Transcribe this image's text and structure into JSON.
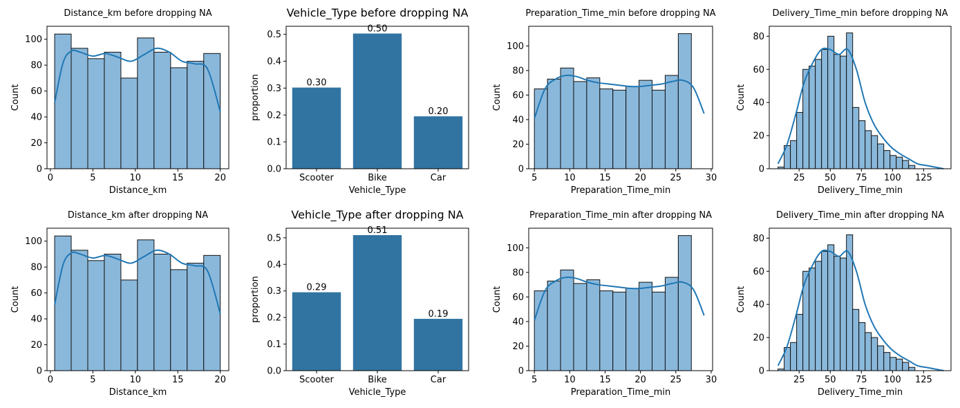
{
  "chart_data": [
    {
      "type": "histogram",
      "title": "Distance_km before dropping NA",
      "xlabel": "Distance_km",
      "ylabel": "Count",
      "xlim": [
        -0.4,
        21.0
      ],
      "ylim": [
        0,
        110
      ],
      "xticks": [
        0,
        5,
        10,
        15,
        20
      ],
      "yticks": [
        0,
        20,
        40,
        60,
        80,
        100
      ],
      "bin_edges": [
        0.5,
        2.45,
        4.4,
        6.35,
        8.3,
        10.25,
        12.2,
        14.15,
        16.1,
        18.05,
        20.0
      ],
      "counts": [
        104,
        93,
        85,
        90,
        70,
        101,
        90,
        78,
        83,
        89
      ],
      "kde": {
        "x": [
          0.5,
          1.5,
          2.5,
          3.5,
          5,
          6.5,
          8,
          9.5,
          11,
          12.5,
          14,
          15.5,
          17,
          18.5,
          20
        ],
        "y": [
          51,
          82,
          91,
          90,
          87,
          89,
          86,
          83,
          88,
          93,
          90,
          83,
          81,
          77,
          44
        ]
      },
      "color": "#8ab8db",
      "line_color": "#1f77b4"
    },
    {
      "type": "bar",
      "title": "Vehicle_Type before dropping NA",
      "xlabel": "Vehicle_Type",
      "ylabel": "proportion",
      "categories": [
        "Scooter",
        "Bike",
        "Car"
      ],
      "values": [
        0.302,
        0.503,
        0.195
      ],
      "data_labels": [
        "0.30",
        "0.50",
        "0.20"
      ],
      "ylim": [
        0,
        0.53
      ],
      "yticks": [
        "0.0",
        "0.1",
        "0.2",
        "0.3",
        "0.4",
        "0.5"
      ],
      "color": "#3274a1"
    },
    {
      "type": "histogram",
      "title": "Preparation_Time_min before dropping NA",
      "xlabel": "Preparation_Time_min",
      "ylabel": "Count",
      "xlim": [
        4.2,
        30.2
      ],
      "ylim": [
        0,
        116
      ],
      "xticks": [
        5,
        10,
        15,
        20,
        25,
        30
      ],
      "yticks": [
        0,
        20,
        40,
        60,
        80,
        100
      ],
      "bin_edges": [
        5,
        6.85,
        8.7,
        10.55,
        12.4,
        14.25,
        16.1,
        17.95,
        19.8,
        21.65,
        23.5,
        25.35,
        27.2,
        29.05
      ],
      "counts": [
        65,
        73,
        82,
        71,
        74,
        65,
        64,
        67,
        72,
        64,
        76,
        110,
        0
      ],
      "kde": {
        "x": [
          5,
          6.5,
          8,
          9.5,
          11,
          12.5,
          14,
          15.5,
          17,
          18.5,
          20,
          21.5,
          23,
          24.5,
          26,
          27.5,
          29
        ],
        "y": [
          41,
          65,
          73,
          76,
          75,
          72,
          70,
          69,
          68,
          67,
          67,
          68,
          69,
          71,
          72,
          66,
          45
        ]
      },
      "color": "#8ab8db",
      "line_color": "#1f77b4"
    },
    {
      "type": "histogram",
      "title": "Delivery_Time_min before dropping NA",
      "xlabel": "Delivery_Time_min",
      "ylabel": "Count",
      "xlim": [
        1,
        147
      ],
      "ylim": [
        0,
        86
      ],
      "xticks": [
        25,
        50,
        75,
        100,
        125
      ],
      "yticks": [
        0,
        20,
        40,
        60,
        80
      ],
      "bin_edges": [
        8,
        13,
        18,
        23,
        28,
        33,
        38,
        43,
        48,
        53,
        58,
        63,
        68,
        73,
        78,
        83,
        88,
        93,
        98,
        103,
        108,
        113,
        118,
        123,
        128,
        133,
        138,
        143
      ],
      "counts": [
        1,
        14,
        17,
        34,
        60,
        62,
        66,
        72,
        80,
        69,
        68,
        82,
        37,
        29,
        23,
        20,
        15,
        11,
        8,
        7,
        5,
        2,
        0,
        0,
        0,
        0,
        0
      ],
      "kde": {
        "x": [
          8,
          15,
          22,
          29,
          36,
          43,
          50,
          57,
          64,
          71,
          78,
          85,
          92,
          99,
          106,
          113,
          120,
          127,
          134,
          141
        ],
        "y": [
          3,
          14,
          32,
          52,
          64,
          72,
          72,
          69,
          72,
          60,
          40,
          27,
          19,
          13,
          9,
          6,
          3,
          2,
          1,
          0
        ]
      },
      "color": "#8ab8db",
      "line_color": "#1f77b4"
    },
    {
      "type": "histogram",
      "title": "Distance_km after dropping NA",
      "xlabel": "Distance_km",
      "ylabel": "Count",
      "xlim": [
        -0.4,
        21.0
      ],
      "ylim": [
        0,
        110
      ],
      "xticks": [
        0,
        5,
        10,
        15,
        20
      ],
      "yticks": [
        0,
        20,
        40,
        60,
        80,
        100
      ],
      "bin_edges": [
        0.5,
        2.45,
        4.4,
        6.35,
        8.3,
        10.25,
        12.2,
        14.15,
        16.1,
        18.05,
        20.0
      ],
      "counts": [
        104,
        93,
        85,
        90,
        70,
        101,
        90,
        78,
        83,
        89
      ],
      "kde": {
        "x": [
          0.5,
          1.5,
          2.5,
          3.5,
          5,
          6.5,
          8,
          9.5,
          11,
          12.5,
          14,
          15.5,
          17,
          18.5,
          20
        ],
        "y": [
          51,
          82,
          91,
          90,
          87,
          89,
          86,
          83,
          88,
          93,
          90,
          83,
          81,
          77,
          44
        ]
      },
      "color": "#8ab8db",
      "line_color": "#1f77b4"
    },
    {
      "type": "bar",
      "title": "Vehicle_Type after dropping NA",
      "xlabel": "Vehicle_Type",
      "ylabel": "proportion",
      "categories": [
        "Scooter",
        "Bike",
        "Car"
      ],
      "values": [
        0.295,
        0.51,
        0.195
      ],
      "data_labels": [
        "0.29",
        "0.51",
        "0.19"
      ],
      "ylim": [
        0,
        0.536
      ],
      "yticks": [
        "0.0",
        "0.1",
        "0.2",
        "0.3",
        "0.4",
        "0.5"
      ],
      "color": "#3274a1"
    },
    {
      "type": "histogram",
      "title": "Preparation_Time_min after dropping NA",
      "xlabel": "Preparation_Time_min",
      "ylabel": "Count",
      "xlim": [
        4.2,
        30.2
      ],
      "ylim": [
        0,
        116
      ],
      "xticks": [
        5,
        10,
        15,
        20,
        25,
        30
      ],
      "yticks": [
        0,
        20,
        40,
        60,
        80,
        100
      ],
      "bin_edges": [
        5,
        6.85,
        8.7,
        10.55,
        12.4,
        14.25,
        16.1,
        17.95,
        19.8,
        21.65,
        23.5,
        25.35,
        27.2,
        29.05
      ],
      "counts": [
        65,
        73,
        82,
        71,
        74,
        65,
        64,
        67,
        72,
        64,
        76,
        110,
        0
      ],
      "kde": {
        "x": [
          5,
          6.5,
          8,
          9.5,
          11,
          12.5,
          14,
          15.5,
          17,
          18.5,
          20,
          21.5,
          23,
          24.5,
          26,
          27.5,
          29
        ],
        "y": [
          41,
          65,
          73,
          76,
          75,
          72,
          70,
          69,
          68,
          67,
          67,
          68,
          69,
          71,
          72,
          66,
          45
        ]
      },
      "color": "#8ab8db",
      "line_color": "#1f77b4"
    },
    {
      "type": "histogram",
      "title": "Delivery_Time_min after dropping NA",
      "xlabel": "Delivery_Time_min",
      "ylabel": "Count",
      "xlim": [
        1,
        147
      ],
      "ylim": [
        0,
        86
      ],
      "xticks": [
        25,
        50,
        75,
        100,
        125
      ],
      "yticks": [
        0,
        20,
        40,
        60,
        80
      ],
      "bin_edges": [
        8,
        13,
        18,
        23,
        28,
        33,
        38,
        43,
        48,
        53,
        58,
        63,
        68,
        73,
        78,
        83,
        88,
        93,
        98,
        103,
        108,
        113,
        118,
        123,
        128,
        133,
        138,
        143
      ],
      "counts": [
        1,
        14,
        17,
        34,
        60,
        62,
        66,
        72,
        76,
        69,
        68,
        82,
        37,
        29,
        23,
        20,
        15,
        11,
        8,
        7,
        5,
        2,
        0,
        0,
        0,
        0,
        0
      ],
      "kde": {
        "x": [
          8,
          15,
          22,
          29,
          36,
          43,
          50,
          57,
          64,
          71,
          78,
          85,
          92,
          99,
          106,
          113,
          120,
          127,
          134,
          141
        ],
        "y": [
          3,
          14,
          32,
          52,
          64,
          72,
          72,
          69,
          72,
          60,
          40,
          27,
          19,
          13,
          9,
          6,
          3,
          2,
          1,
          0
        ]
      },
      "color": "#8ab8db",
      "line_color": "#1f77b4"
    }
  ]
}
